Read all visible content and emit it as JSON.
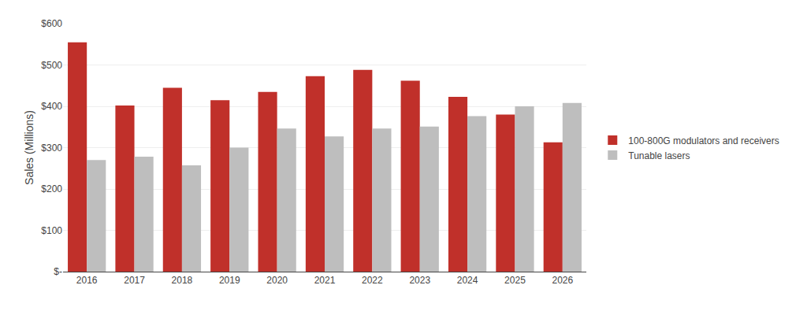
{
  "chart_data": {
    "type": "bar",
    "categories": [
      "2016",
      "2017",
      "2018",
      "2019",
      "2020",
      "2021",
      "2022",
      "2023",
      "2024",
      "2025",
      "2026"
    ],
    "series": [
      {
        "name": "100-800G modulators and receivers",
        "color": "#C0302A",
        "values": [
          555,
          402,
          445,
          415,
          435,
          473,
          488,
          462,
          423,
          380,
          313
        ]
      },
      {
        "name": "Tunable lasers",
        "color": "#BEBEBE",
        "values": [
          270,
          278,
          257,
          300,
          346,
          327,
          346,
          351,
          376,
          400,
          408
        ]
      }
    ],
    "ylabel": "Sales (Millions)",
    "ylim": [
      0,
      600
    ],
    "yticks": [
      {
        "value": 0,
        "label": "$-"
      },
      {
        "value": 100,
        "label": "$100"
      },
      {
        "value": 200,
        "label": "$200"
      },
      {
        "value": 300,
        "label": "$300"
      },
      {
        "value": 400,
        "label": "$400"
      },
      {
        "value": 500,
        "label": "$500"
      },
      {
        "value": 600,
        "label": "$600"
      }
    ],
    "grid": true,
    "legend": "right"
  }
}
